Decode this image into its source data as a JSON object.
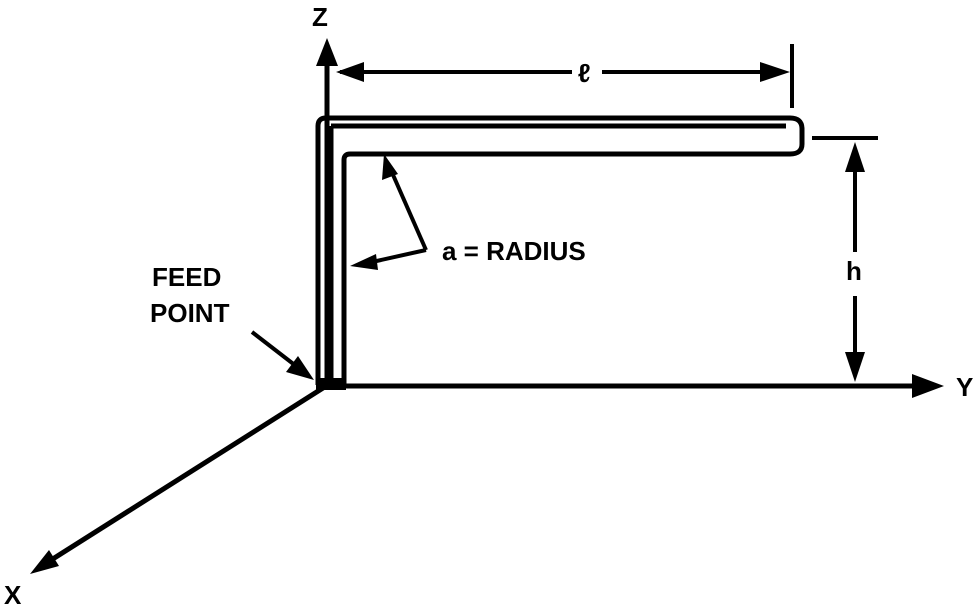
{
  "diagram": {
    "type": "antenna-geometry",
    "labels": {
      "z_axis": "Z",
      "y_axis": "Y",
      "x_axis": "X",
      "length": "ℓ",
      "height": "h",
      "radius": "a = RADIUS",
      "feed_line1": "FEED",
      "feed_line2": "POINT"
    },
    "colors": {
      "ink": "#000000",
      "background": "#ffffff"
    }
  }
}
